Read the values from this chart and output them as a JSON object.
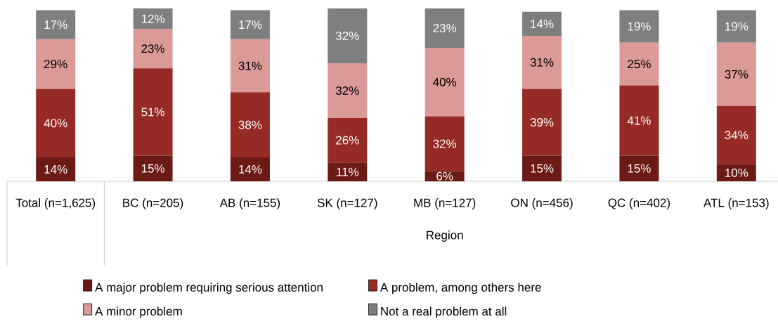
{
  "chart_data": {
    "type": "bar",
    "stacked": true,
    "xlabel": "Region",
    "categories": [
      "Total (n=1,625)",
      "BC (n=205)",
      "AB (n=155)",
      "SK (n=127)",
      "MB (n=127)",
      "ON (n=456)",
      "QC (n=402)",
      "ATL (n=153)"
    ],
    "series": [
      {
        "name": "A major problem requiring serious attention",
        "color": "#6b1a16",
        "values": [
          14,
          15,
          14,
          11,
          6,
          15,
          15,
          10
        ],
        "value_labels": [
          "14%",
          "15%",
          "14%",
          "11%",
          "6%",
          "15%",
          "15%",
          "10%"
        ]
      },
      {
        "name": "A problem, among others here",
        "color": "#962a25",
        "values": [
          40,
          51,
          38,
          26,
          32,
          39,
          41,
          34
        ],
        "value_labels": [
          "40%",
          "51%",
          "38%",
          "26%",
          "32%",
          "39%",
          "41%",
          "34%"
        ]
      },
      {
        "name": "A minor problem",
        "color": "#db9a98",
        "values": [
          29,
          23,
          31,
          32,
          40,
          31,
          25,
          37
        ],
        "value_labels": [
          "29%",
          "23%",
          "31%",
          "32%",
          "40%",
          "31%",
          "25%",
          "37%"
        ]
      },
      {
        "name": "Not a real problem at all",
        "color": "#7f7f7f",
        "values": [
          17,
          12,
          17,
          32,
          23,
          14,
          19,
          19
        ],
        "value_labels": [
          "17%",
          "12%",
          "17%",
          "32%",
          "23%",
          "14%",
          "19%",
          "19%"
        ]
      }
    ],
    "ylim": [
      0,
      101
    ],
    "legend": "bottom"
  }
}
